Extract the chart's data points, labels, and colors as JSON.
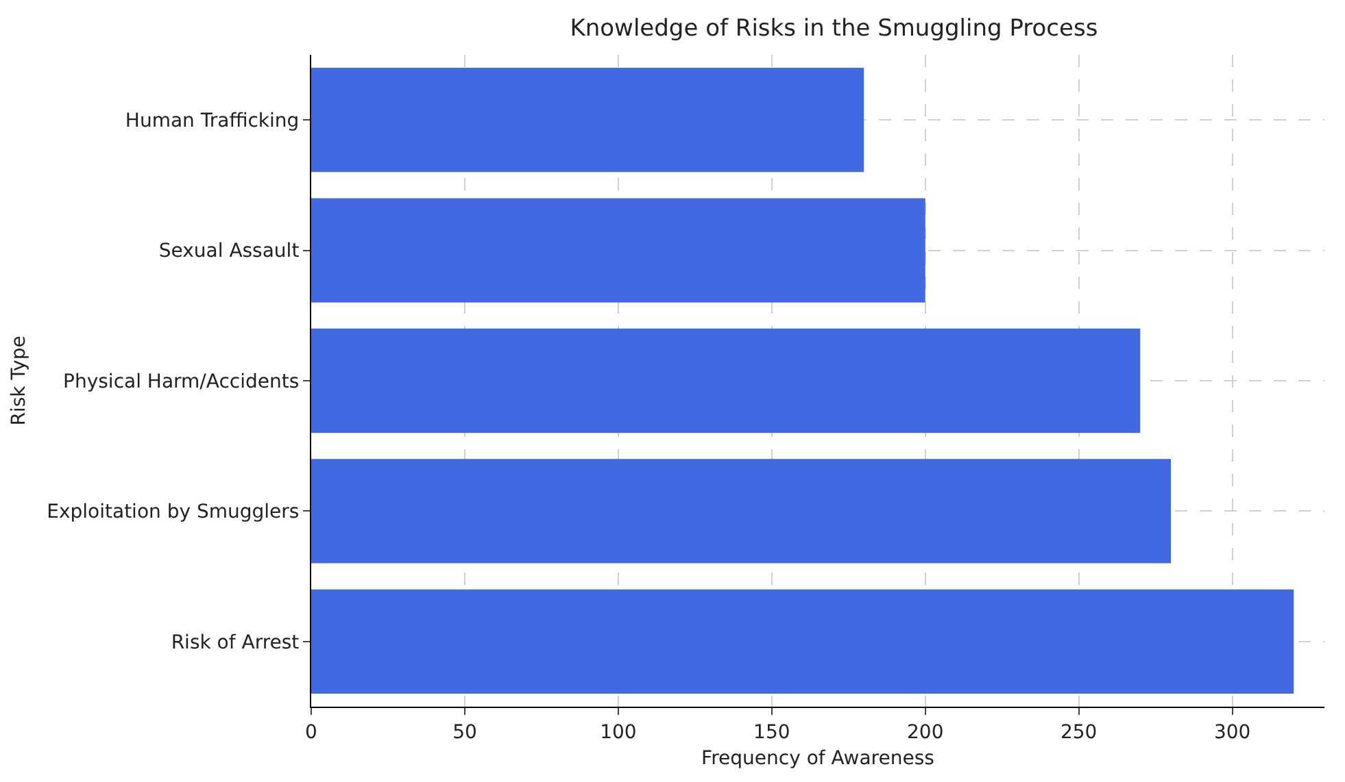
{
  "chart_data": {
    "type": "bar",
    "orientation": "horizontal",
    "title": "Knowledge of Risks in the Smuggling Process",
    "xlabel": "Frequency of Awareness",
    "ylabel": "Risk Type",
    "categories": [
      "Human Trafficking",
      "Sexual Assault",
      "Physical Harm/Accidents",
      "Exploitation by Smugglers",
      "Risk of Arrest"
    ],
    "values": [
      180,
      200,
      270,
      280,
      320
    ],
    "color": "#4169e1",
    "xlim": [
      0,
      330
    ],
    "xticks": [
      0,
      50,
      100,
      150,
      200,
      250,
      300
    ],
    "grid": true
  }
}
